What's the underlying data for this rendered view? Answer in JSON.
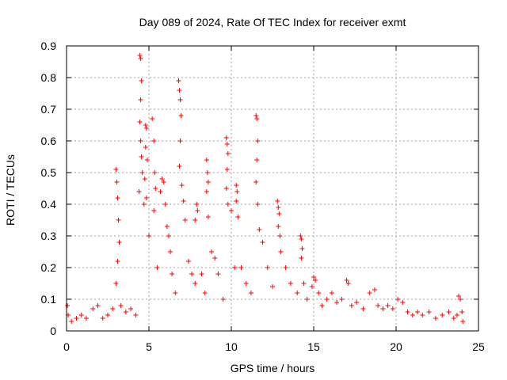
{
  "chart_data": {
    "type": "scatter",
    "title": "Day 089 of 2024, Rate Of TEC Index for receiver exmt",
    "xlabel": "GPS time / hours",
    "ylabel": "ROTI / TECUs",
    "xlim": [
      0,
      25
    ],
    "ylim": [
      0,
      0.9
    ],
    "xticks": [
      "0",
      "5",
      "10",
      "15",
      "20",
      "25"
    ],
    "yticks": [
      "0",
      "0.1",
      "0.2",
      "0.3",
      "0.4",
      "0.5",
      "0.6",
      "0.7",
      "0.8",
      "0.9"
    ],
    "grid": true,
    "marker": "+",
    "color": "#ff0000",
    "series": [
      {
        "x": [
          0.05,
          0.1,
          0.3,
          0.6,
          0.9,
          1.2,
          1.6,
          1.9,
          2.2,
          2.5,
          2.8,
          3.0,
          3.05,
          3.1,
          3.15,
          3.2,
          3.1,
          3.0,
          3.3,
          3.6,
          3.9,
          4.2,
          4.45,
          4.5,
          4.55,
          4.5,
          4.45,
          4.5,
          4.55,
          4.6,
          4.4,
          4.7,
          4.8,
          4.85,
          4.8,
          4.9,
          4.75,
          4.85,
          5.0,
          5.2,
          5.3,
          5.35,
          5.4,
          5.3,
          5.5,
          5.7,
          5.8,
          5.9,
          6.0,
          6.1,
          6.2,
          6.3,
          6.4,
          6.6,
          6.8,
          6.85,
          6.9,
          6.95,
          6.9,
          6.85,
          7.0,
          7.1,
          7.2,
          7.4,
          7.6,
          7.8,
          7.9,
          7.95,
          7.8,
          8.2,
          8.4,
          8.5,
          8.55,
          8.6,
          8.5,
          8.6,
          8.8,
          9.0,
          9.2,
          9.5,
          9.7,
          9.75,
          9.8,
          9.75,
          9.7,
          9.8,
          10.0,
          10.2,
          10.3,
          10.35,
          10.3,
          10.4,
          10.6,
          10.9,
          11.2,
          11.5,
          11.55,
          11.6,
          11.55,
          11.5,
          11.6,
          11.7,
          11.9,
          12.2,
          12.5,
          12.8,
          12.85,
          12.9,
          12.85,
          12.95,
          13.0,
          13.3,
          13.6,
          14.0,
          14.2,
          14.25,
          14.3,
          14.25,
          14.4,
          14.6,
          14.9,
          15.0,
          15.1,
          15.3,
          15.5,
          15.8,
          16.1,
          16.4,
          16.7,
          17.0,
          17.1,
          17.3,
          17.6,
          18.0,
          18.4,
          18.7,
          18.9,
          19.2,
          19.5,
          19.8,
          20.1,
          20.4,
          20.7,
          21.0,
          21.3,
          21.6,
          22.0,
          22.4,
          22.8,
          23.2,
          23.5,
          23.7,
          23.8,
          23.9,
          24.0,
          24.05
        ],
        "y": [
          0.08,
          0.05,
          0.03,
          0.04,
          0.05,
          0.04,
          0.07,
          0.08,
          0.04,
          0.05,
          0.07,
          0.51,
          0.47,
          0.42,
          0.35,
          0.28,
          0.22,
          0.15,
          0.08,
          0.06,
          0.07,
          0.05,
          0.87,
          0.86,
          0.79,
          0.73,
          0.66,
          0.6,
          0.55,
          0.5,
          0.44,
          0.4,
          0.65,
          0.64,
          0.58,
          0.54,
          0.48,
          0.42,
          0.3,
          0.67,
          0.6,
          0.5,
          0.45,
          0.38,
          0.2,
          0.44,
          0.48,
          0.47,
          0.4,
          0.33,
          0.3,
          0.25,
          0.18,
          0.12,
          0.79,
          0.76,
          0.73,
          0.68,
          0.6,
          0.52,
          0.46,
          0.41,
          0.35,
          0.22,
          0.18,
          0.15,
          0.4,
          0.38,
          0.35,
          0.18,
          0.12,
          0.54,
          0.5,
          0.47,
          0.44,
          0.36,
          0.25,
          0.23,
          0.18,
          0.1,
          0.61,
          0.59,
          0.56,
          0.51,
          0.45,
          0.4,
          0.38,
          0.2,
          0.46,
          0.44,
          0.41,
          0.36,
          0.2,
          0.15,
          0.12,
          0.68,
          0.67,
          0.6,
          0.54,
          0.47,
          0.4,
          0.32,
          0.28,
          0.2,
          0.14,
          0.41,
          0.39,
          0.37,
          0.33,
          0.3,
          0.25,
          0.2,
          0.15,
          0.12,
          0.3,
          0.29,
          0.26,
          0.23,
          0.15,
          0.1,
          0.14,
          0.17,
          0.16,
          0.12,
          0.08,
          0.1,
          0.12,
          0.09,
          0.1,
          0.16,
          0.15,
          0.08,
          0.09,
          0.07,
          0.12,
          0.13,
          0.08,
          0.07,
          0.08,
          0.07,
          0.1,
          0.09,
          0.06,
          0.05,
          0.06,
          0.05,
          0.06,
          0.04,
          0.05,
          0.06,
          0.04,
          0.05,
          0.11,
          0.1,
          0.06,
          0.03
        ]
      }
    ]
  }
}
